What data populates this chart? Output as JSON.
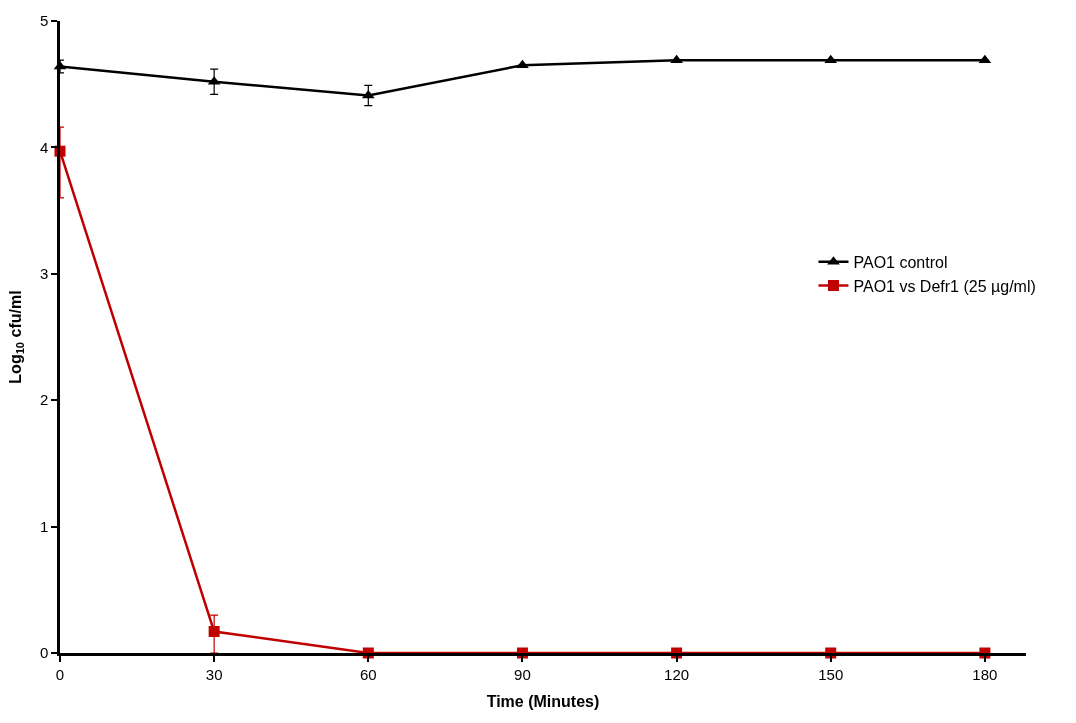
{
  "chart_data": {
    "type": "line",
    "xlabel": "Time (Minutes)",
    "ylabel": "Log$_{10}$ cfu/ml",
    "x": [
      0,
      30,
      60,
      90,
      120,
      150,
      180
    ],
    "series": [
      {
        "name": "PAO1 control",
        "color": "#000000",
        "marker": "triangle",
        "values": [
          4.64,
          4.52,
          4.41,
          4.65,
          4.69,
          4.69,
          4.69
        ],
        "errors": [
          0.05,
          0.1,
          0.08,
          null,
          null,
          null,
          null
        ]
      },
      {
        "name": "PAO1 vs Defr1 (25 µg/ml)",
        "color": "#c00000",
        "marker": "square",
        "values": [
          3.97,
          0.17,
          0,
          0,
          0,
          0,
          0
        ],
        "errors": [
          [
            3.6,
            4.16
          ],
          [
            0.0,
            0.3
          ],
          null,
          null,
          null,
          null,
          null
        ]
      }
    ],
    "xlim": [
      0,
      188
    ],
    "xticks": [
      0,
      30,
      60,
      90,
      120,
      150,
      180
    ],
    "ylim": [
      0,
      5
    ],
    "yticks": [
      0,
      1,
      2,
      3,
      4,
      5
    ],
    "legend": "right",
    "line_style": "solid"
  }
}
